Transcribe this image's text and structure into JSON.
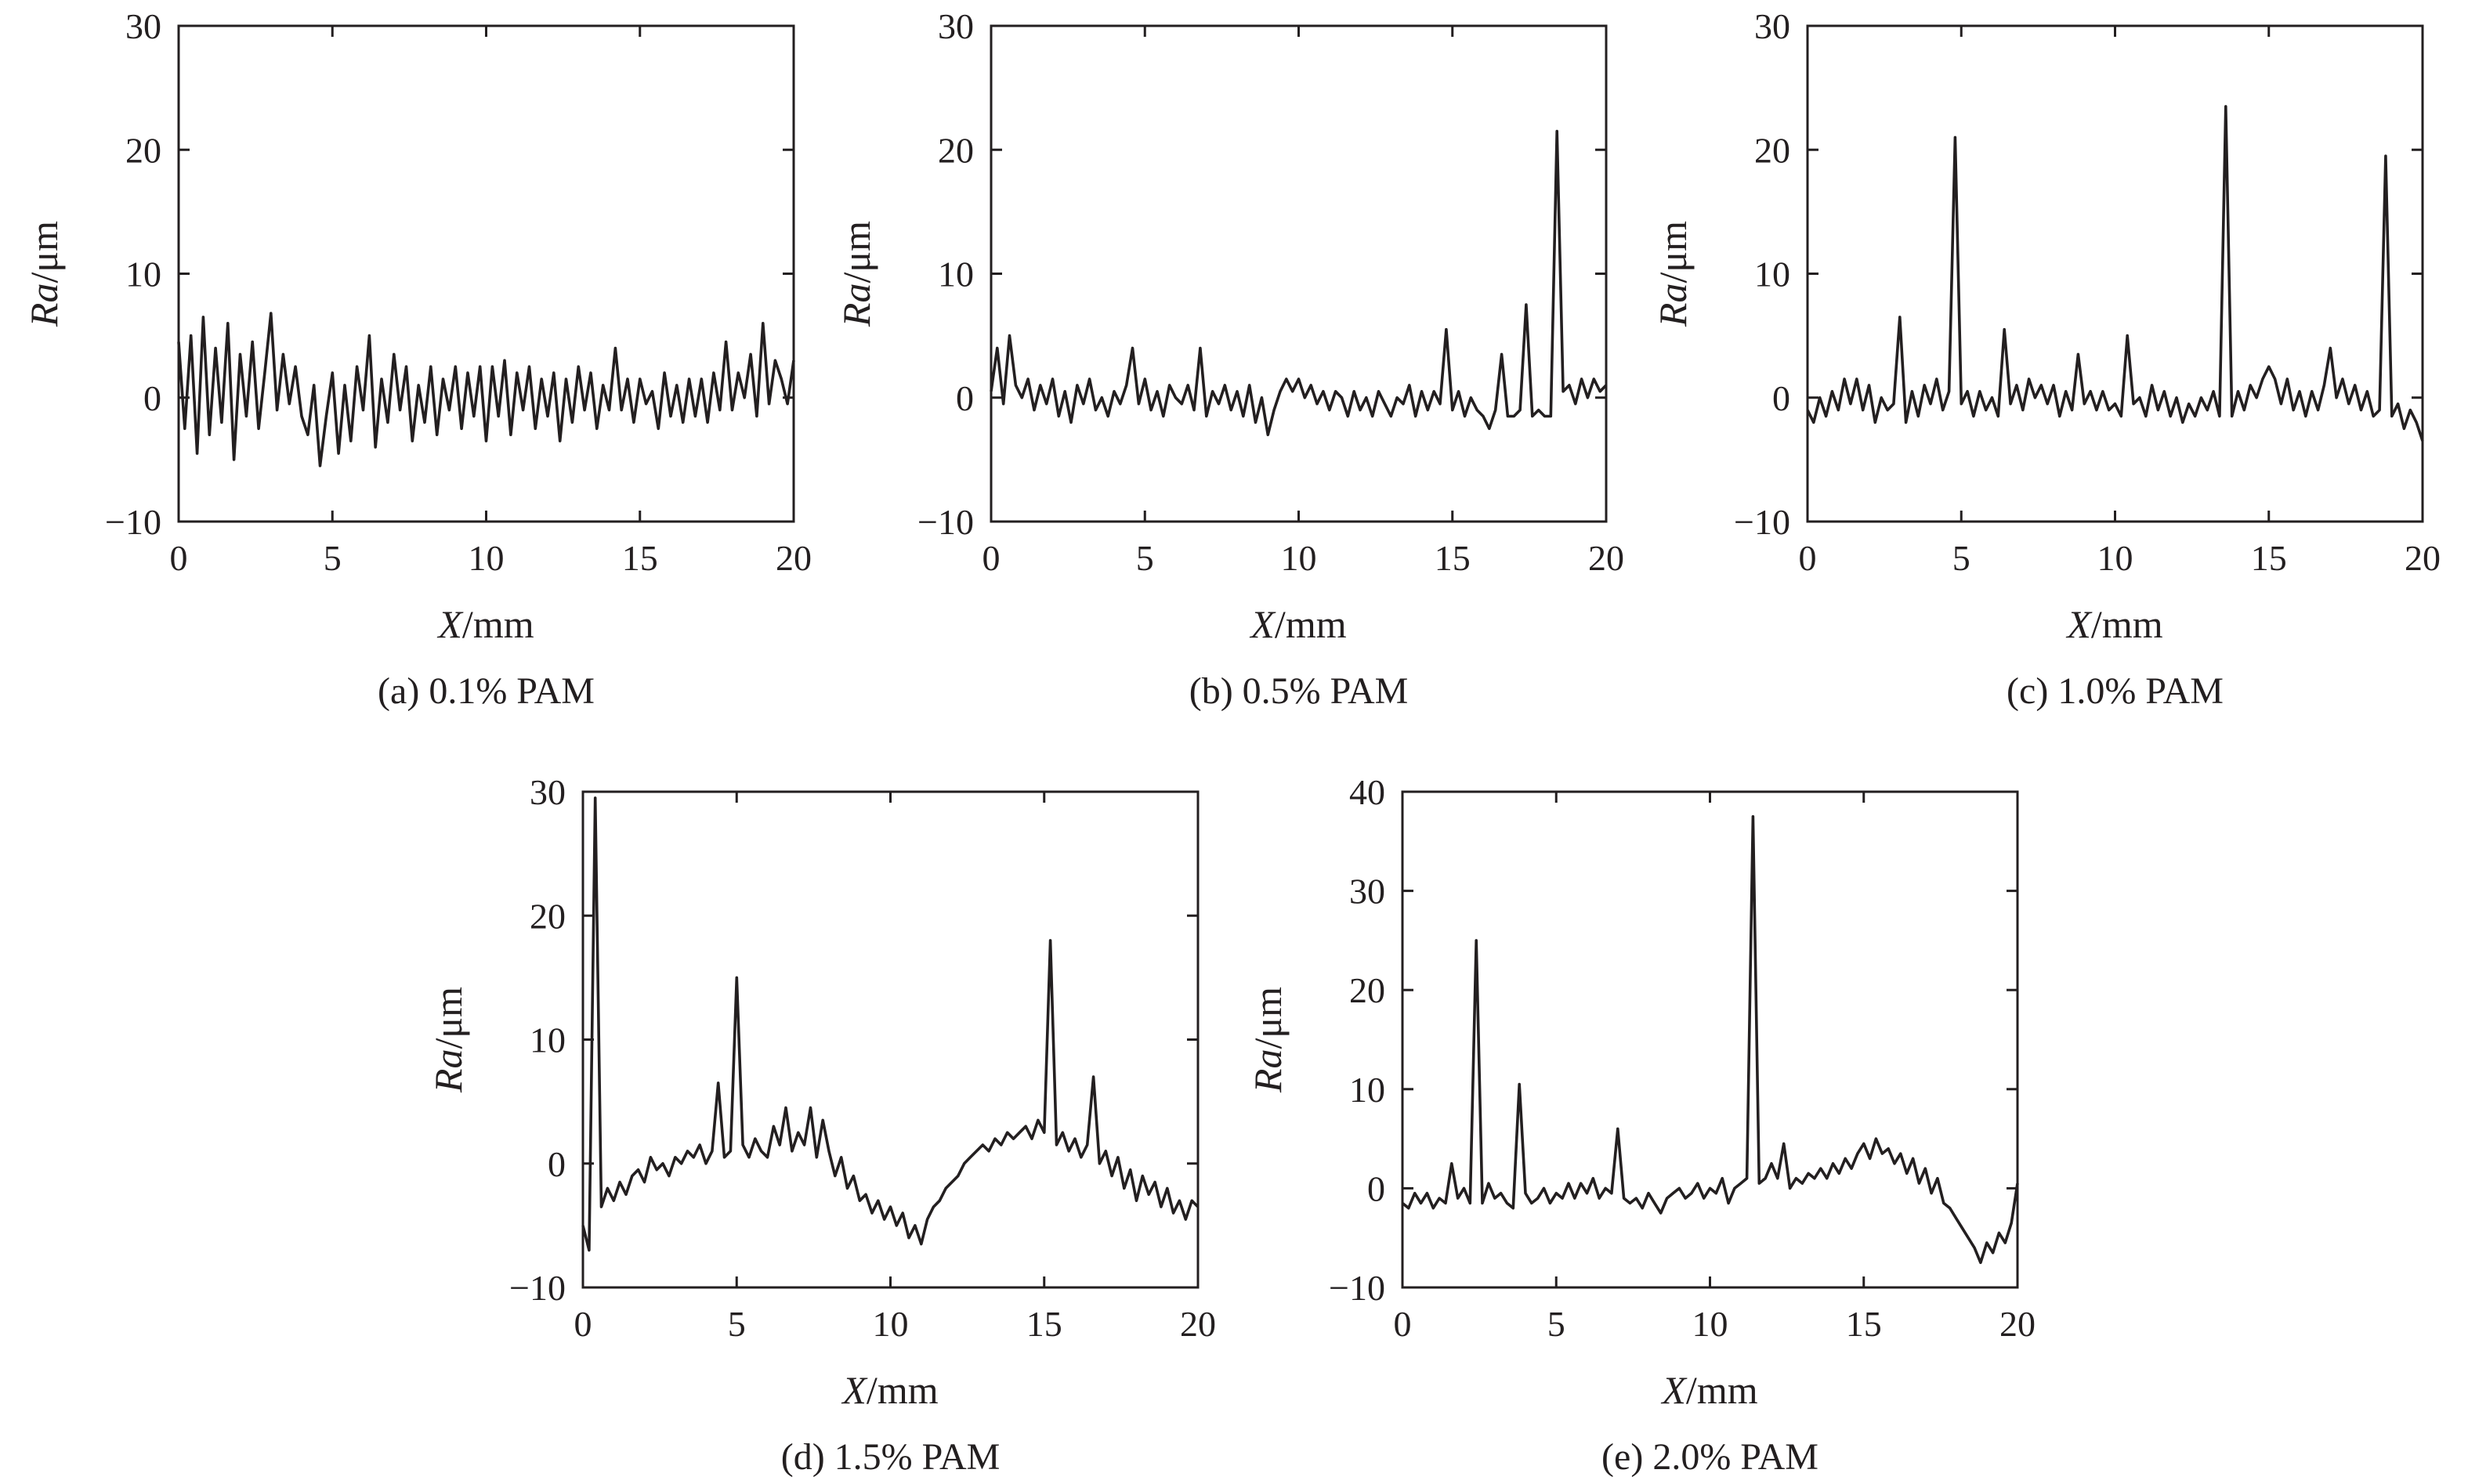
{
  "chart_data": [
    {
      "type": "line",
      "caption": "(a) 0.1% PAM",
      "xlabel_var": "X",
      "xlabel_unit": "/mm",
      "ylabel_var": "Ra",
      "ylabel_unit": "/μm",
      "xlim": [
        0,
        20
      ],
      "ylim": [
        -10,
        30
      ],
      "xticks": [
        0,
        5,
        10,
        15,
        20
      ],
      "yticks": [
        -10,
        0,
        10,
        20,
        30
      ],
      "x": [
        0.0,
        0.2,
        0.4,
        0.6,
        0.8,
        1.0,
        1.2,
        1.4,
        1.6,
        1.8,
        2.0,
        2.2,
        2.4,
        2.6,
        2.8,
        3.0,
        3.2,
        3.4,
        3.6,
        3.8,
        4.0,
        4.2,
        4.4,
        4.6,
        4.8,
        5.0,
        5.2,
        5.4,
        5.6,
        5.8,
        6.0,
        6.2,
        6.4,
        6.6,
        6.8,
        7.0,
        7.2,
        7.4,
        7.6,
        7.8,
        8.0,
        8.2,
        8.4,
        8.6,
        8.8,
        9.0,
        9.2,
        9.4,
        9.6,
        9.8,
        10.0,
        10.2,
        10.4,
        10.6,
        10.8,
        11.0,
        11.2,
        11.4,
        11.6,
        11.8,
        12.0,
        12.2,
        12.4,
        12.6,
        12.8,
        13.0,
        13.2,
        13.4,
        13.6,
        13.8,
        14.0,
        14.2,
        14.4,
        14.6,
        14.8,
        15.0,
        15.2,
        15.4,
        15.6,
        15.8,
        16.0,
        16.2,
        16.4,
        16.6,
        16.8,
        17.0,
        17.2,
        17.4,
        17.6,
        17.8,
        18.0,
        18.2,
        18.4,
        18.6,
        18.8,
        19.0,
        19.2,
        19.4,
        19.6,
        19.8,
        20.0
      ],
      "y": [
        4.5,
        -2.5,
        5.0,
        -4.5,
        6.5,
        -3.0,
        4.0,
        -2.0,
        6.0,
        -5.0,
        3.5,
        -1.5,
        4.5,
        -2.5,
        2.0,
        6.8,
        -1.0,
        3.5,
        -0.5,
        2.5,
        -1.5,
        -3.0,
        1.0,
        -5.5,
        -1.5,
        2.0,
        -4.5,
        1.0,
        -3.5,
        2.5,
        -1.0,
        5.0,
        -4.0,
        1.5,
        -2.0,
        3.5,
        -1.0,
        2.5,
        -3.5,
        1.0,
        -2.0,
        2.5,
        -3.0,
        1.5,
        -1.0,
        2.5,
        -2.5,
        2.0,
        -1.5,
        2.5,
        -3.5,
        2.5,
        -1.5,
        3.0,
        -3.0,
        2.0,
        -1.0,
        2.5,
        -2.5,
        1.5,
        -1.5,
        2.0,
        -3.5,
        1.5,
        -2.0,
        2.5,
        -1.0,
        2.0,
        -2.5,
        1.0,
        -1.0,
        4.0,
        -1.0,
        1.5,
        -2.0,
        1.5,
        -0.5,
        0.5,
        -2.5,
        2.0,
        -1.5,
        1.0,
        -2.0,
        1.5,
        -1.5,
        1.5,
        -2.0,
        2.0,
        -1.0,
        4.5,
        -1.0,
        2.0,
        0.0,
        3.5,
        -1.5,
        6.0,
        -0.5,
        3.0,
        1.5,
        -0.5,
        3.0
      ],
      "peaks": []
    },
    {
      "type": "line",
      "caption": "(b) 0.5% PAM",
      "xlabel_var": "X",
      "xlabel_unit": "/mm",
      "ylabel_var": "Ra",
      "ylabel_unit": "/μm",
      "xlim": [
        0,
        20
      ],
      "ylim": [
        -10,
        30
      ],
      "xticks": [
        0,
        5,
        10,
        15,
        20
      ],
      "yticks": [
        -10,
        0,
        10,
        20,
        30
      ],
      "x": [
        0.0,
        0.2,
        0.4,
        0.6,
        0.8,
        1.0,
        1.2,
        1.4,
        1.6,
        1.8,
        2.0,
        2.2,
        2.4,
        2.6,
        2.8,
        3.0,
        3.2,
        3.4,
        3.6,
        3.8,
        4.0,
        4.2,
        4.4,
        4.6,
        4.8,
        5.0,
        5.2,
        5.4,
        5.6,
        5.8,
        6.0,
        6.2,
        6.4,
        6.6,
        6.8,
        7.0,
        7.2,
        7.4,
        7.6,
        7.8,
        8.0,
        8.2,
        8.4,
        8.6,
        8.8,
        9.0,
        9.2,
        9.4,
        9.6,
        9.8,
        10.0,
        10.2,
        10.4,
        10.6,
        10.8,
        11.0,
        11.2,
        11.4,
        11.6,
        11.8,
        12.0,
        12.2,
        12.4,
        12.6,
        12.8,
        13.0,
        13.2,
        13.4,
        13.6,
        13.8,
        14.0,
        14.2,
        14.4,
        14.6,
        14.8,
        15.0,
        15.2,
        15.4,
        15.6,
        15.8,
        16.0,
        16.2,
        16.4,
        16.6,
        16.8,
        17.0,
        17.2,
        17.4,
        17.6,
        17.8,
        18.0,
        18.2,
        18.4,
        18.6,
        18.8,
        19.0,
        19.2,
        19.4,
        19.6,
        19.8,
        20.0
      ],
      "y": [
        0.5,
        4.0,
        -0.5,
        5.0,
        1.0,
        0.0,
        1.5,
        -1.0,
        1.0,
        -0.5,
        1.5,
        -1.5,
        0.5,
        -2.0,
        1.0,
        -0.5,
        1.5,
        -1.0,
        0.0,
        -1.5,
        0.5,
        -0.5,
        1.0,
        4.0,
        -0.5,
        1.5,
        -1.0,
        0.5,
        -1.5,
        1.0,
        0.0,
        -0.5,
        1.0,
        -1.0,
        4.0,
        -1.5,
        0.5,
        -0.5,
        1.0,
        -1.0,
        0.5,
        -1.5,
        1.0,
        -2.0,
        0.0,
        -3.0,
        -1.0,
        0.5,
        1.5,
        0.5,
        1.5,
        0.0,
        1.0,
        -0.5,
        0.5,
        -1.0,
        0.5,
        0.0,
        -1.5,
        0.5,
        -1.0,
        0.0,
        -1.5,
        0.5,
        -0.5,
        -1.5,
        0.0,
        -0.5,
        1.0,
        -1.5,
        0.5,
        -1.0,
        0.5,
        -0.5,
        5.5,
        -1.0,
        0.5,
        -1.5,
        0.0,
        -1.0,
        -1.5,
        -2.5,
        -1.0,
        3.5,
        -1.5,
        -1.5,
        -1.0,
        7.5,
        -1.5,
        -1.0,
        -1.5,
        -1.5,
        21.5,
        0.5,
        1.0,
        -0.5,
        1.5,
        0.0,
        1.5,
        0.5,
        1.0
      ],
      "peaks": [
        [
          15.0,
          5.5
        ],
        [
          17.6,
          7.5
        ],
        [
          18.4,
          21.5
        ]
      ]
    },
    {
      "type": "line",
      "caption": "(c) 1.0% PAM",
      "xlabel_var": "X",
      "xlabel_unit": "/mm",
      "ylabel_var": "Ra",
      "ylabel_unit": "/μm",
      "xlim": [
        0,
        20
      ],
      "ylim": [
        -10,
        30
      ],
      "xticks": [
        0,
        5,
        10,
        15,
        20
      ],
      "yticks": [
        -10,
        0,
        10,
        20,
        30
      ],
      "x": [
        0.0,
        0.2,
        0.4,
        0.6,
        0.8,
        1.0,
        1.2,
        1.4,
        1.6,
        1.8,
        2.0,
        2.2,
        2.4,
        2.6,
        2.8,
        3.0,
        3.2,
        3.4,
        3.6,
        3.8,
        4.0,
        4.2,
        4.4,
        4.6,
        4.8,
        5.0,
        5.2,
        5.4,
        5.6,
        5.8,
        6.0,
        6.2,
        6.4,
        6.6,
        6.8,
        7.0,
        7.2,
        7.4,
        7.6,
        7.8,
        8.0,
        8.2,
        8.4,
        8.6,
        8.8,
        9.0,
        9.2,
        9.4,
        9.6,
        9.8,
        10.0,
        10.2,
        10.4,
        10.6,
        10.8,
        11.0,
        11.2,
        11.4,
        11.6,
        11.8,
        12.0,
        12.2,
        12.4,
        12.6,
        12.8,
        13.0,
        13.2,
        13.4,
        13.6,
        13.8,
        14.0,
        14.2,
        14.4,
        14.6,
        14.8,
        15.0,
        15.2,
        15.4,
        15.6,
        15.8,
        16.0,
        16.2,
        16.4,
        16.6,
        16.8,
        17.0,
        17.2,
        17.4,
        17.6,
        17.8,
        18.0,
        18.2,
        18.4,
        18.6,
        18.8,
        19.0,
        19.2,
        19.4,
        19.6,
        19.8,
        20.0
      ],
      "y": [
        -1.0,
        -2.0,
        0.0,
        -1.5,
        0.5,
        -1.0,
        1.5,
        -0.5,
        1.5,
        -1.0,
        1.0,
        -2.0,
        0.0,
        -1.0,
        -0.5,
        6.5,
        -2.0,
        0.5,
        -1.5,
        1.0,
        -0.5,
        1.5,
        -1.0,
        0.5,
        21.0,
        -0.5,
        0.5,
        -1.5,
        0.5,
        -1.0,
        0.0,
        -1.5,
        5.5,
        -0.5,
        1.0,
        -1.0,
        1.5,
        0.0,
        1.0,
        -0.5,
        1.0,
        -1.5,
        0.5,
        -1.0,
        3.5,
        -0.5,
        0.5,
        -1.0,
        0.5,
        -1.0,
        -0.5,
        -1.5,
        5.0,
        -0.5,
        0.0,
        -1.5,
        1.0,
        -1.0,
        0.5,
        -1.5,
        0.0,
        -2.0,
        -0.5,
        -1.5,
        0.0,
        -1.0,
        0.5,
        -1.5,
        23.5,
        -1.5,
        0.5,
        -1.0,
        1.0,
        0.0,
        1.5,
        2.5,
        1.5,
        -0.5,
        1.5,
        -1.0,
        0.5,
        -1.5,
        0.5,
        -1.0,
        1.0,
        4.0,
        0.0,
        1.5,
        -0.5,
        1.0,
        -1.0,
        0.5,
        -1.5,
        -1.0,
        19.5,
        -1.5,
        -0.5,
        -2.5,
        -1.0,
        -2.0,
        -3.5
      ],
      "peaks": [
        [
          3.0,
          6.5
        ],
        [
          5.4,
          21.0
        ],
        [
          6.6,
          5.5
        ],
        [
          9.0,
          3.5
        ],
        [
          10.6,
          5.0
        ],
        [
          13.6,
          23.5
        ],
        [
          17.2,
          4.0
        ],
        [
          19.0,
          19.5
        ]
      ]
    },
    {
      "type": "line",
      "caption": "(d) 1.5% PAM",
      "xlabel_var": "X",
      "xlabel_unit": "/mm",
      "ylabel_var": "Ra",
      "ylabel_unit": "/μm",
      "xlim": [
        0,
        20
      ],
      "ylim": [
        -10,
        30
      ],
      "xticks": [
        0,
        5,
        10,
        15,
        20
      ],
      "yticks": [
        -10,
        0,
        10,
        20,
        30
      ],
      "x": [
        0.0,
        0.2,
        0.4,
        0.6,
        0.8,
        1.0,
        1.2,
        1.4,
        1.6,
        1.8,
        2.0,
        2.2,
        2.4,
        2.6,
        2.8,
        3.0,
        3.2,
        3.4,
        3.6,
        3.8,
        4.0,
        4.2,
        4.4,
        4.6,
        4.8,
        5.0,
        5.2,
        5.4,
        5.6,
        5.8,
        6.0,
        6.2,
        6.4,
        6.6,
        6.8,
        7.0,
        7.2,
        7.4,
        7.6,
        7.8,
        8.0,
        8.2,
        8.4,
        8.6,
        8.8,
        9.0,
        9.2,
        9.4,
        9.6,
        9.8,
        10.0,
        10.2,
        10.4,
        10.6,
        10.8,
        11.0,
        11.2,
        11.4,
        11.6,
        11.8,
        12.0,
        12.2,
        12.4,
        12.6,
        12.8,
        13.0,
        13.2,
        13.4,
        13.6,
        13.8,
        14.0,
        14.2,
        14.4,
        14.6,
        14.8,
        15.0,
        15.2,
        15.4,
        15.6,
        15.8,
        16.0,
        16.2,
        16.4,
        16.6,
        16.8,
        17.0,
        17.2,
        17.4,
        17.6,
        17.8,
        18.0,
        18.2,
        18.4,
        18.6,
        18.8,
        19.0,
        19.2,
        19.4,
        19.6,
        19.8,
        20.0
      ],
      "y": [
        -5.0,
        -7.0,
        29.5,
        -3.5,
        -2.0,
        -3.0,
        -1.5,
        -2.5,
        -1.0,
        -0.5,
        -1.5,
        0.5,
        -0.5,
        0.0,
        -1.0,
        0.5,
        0.0,
        1.0,
        0.5,
        1.5,
        0.0,
        1.0,
        6.5,
        0.5,
        1.0,
        15.0,
        1.5,
        0.5,
        2.0,
        1.0,
        0.5,
        3.0,
        1.5,
        4.5,
        1.0,
        2.5,
        1.5,
        4.5,
        0.5,
        3.5,
        1.0,
        -1.0,
        0.5,
        -2.0,
        -1.0,
        -3.0,
        -2.5,
        -4.0,
        -3.0,
        -4.5,
        -3.5,
        -5.0,
        -4.0,
        -6.0,
        -5.0,
        -6.5,
        -4.5,
        -3.5,
        -3.0,
        -2.0,
        -1.5,
        -1.0,
        0.0,
        0.5,
        1.0,
        1.5,
        1.0,
        2.0,
        1.5,
        2.5,
        2.0,
        2.5,
        3.0,
        2.0,
        3.5,
        2.5,
        18.0,
        1.5,
        2.5,
        1.0,
        2.0,
        0.5,
        1.5,
        7.0,
        0.0,
        1.0,
        -1.0,
        0.5,
        -2.0,
        -0.5,
        -3.0,
        -1.0,
        -2.5,
        -1.5,
        -3.5,
        -2.0,
        -4.0,
        -3.0,
        -4.5,
        -3.0,
        -3.5
      ],
      "peaks": [
        [
          0.4,
          29.5
        ],
        [
          4.4,
          6.5
        ],
        [
          5.4,
          15.0
        ],
        [
          15.4,
          18.0
        ],
        [
          17.0,
          7.0
        ]
      ]
    },
    {
      "type": "line",
      "caption": "(e) 2.0% PAM",
      "xlabel_var": "X",
      "xlabel_unit": "/mm",
      "ylabel_var": "Ra",
      "ylabel_unit": "/μm",
      "xlim": [
        0,
        20
      ],
      "ylim": [
        -10,
        40
      ],
      "xticks": [
        0,
        5,
        10,
        15,
        20
      ],
      "yticks": [
        -10,
        0,
        10,
        20,
        30,
        40
      ],
      "x": [
        0.0,
        0.2,
        0.4,
        0.6,
        0.8,
        1.0,
        1.2,
        1.4,
        1.6,
        1.8,
        2.0,
        2.2,
        2.4,
        2.6,
        2.8,
        3.0,
        3.2,
        3.4,
        3.6,
        3.8,
        4.0,
        4.2,
        4.4,
        4.6,
        4.8,
        5.0,
        5.2,
        5.4,
        5.6,
        5.8,
        6.0,
        6.2,
        6.4,
        6.6,
        6.8,
        7.0,
        7.2,
        7.4,
        7.6,
        7.8,
        8.0,
        8.2,
        8.4,
        8.6,
        8.8,
        9.0,
        9.2,
        9.4,
        9.6,
        9.8,
        10.0,
        10.2,
        10.4,
        10.6,
        10.8,
        11.0,
        11.2,
        11.4,
        11.6,
        11.8,
        12.0,
        12.2,
        12.4,
        12.6,
        12.8,
        13.0,
        13.2,
        13.4,
        13.6,
        13.8,
        14.0,
        14.2,
        14.4,
        14.6,
        14.8,
        15.0,
        15.2,
        15.4,
        15.6,
        15.8,
        16.0,
        16.2,
        16.4,
        16.6,
        16.8,
        17.0,
        17.2,
        17.4,
        17.6,
        17.8,
        18.0,
        18.2,
        18.4,
        18.6,
        18.8,
        19.0,
        19.2,
        19.4,
        19.6,
        19.8,
        20.0
      ],
      "y": [
        -1.5,
        -2.0,
        -0.5,
        -1.5,
        -0.5,
        -2.0,
        -1.0,
        -1.5,
        2.5,
        -1.0,
        0.0,
        -1.5,
        25.0,
        -1.5,
        0.5,
        -1.0,
        -0.5,
        -1.5,
        -2.0,
        10.5,
        -0.5,
        -1.5,
        -1.0,
        0.0,
        -1.5,
        -0.5,
        -1.0,
        0.5,
        -1.0,
        0.5,
        -0.5,
        1.0,
        -1.0,
        0.0,
        -0.5,
        6.0,
        -1.0,
        -1.5,
        -1.0,
        -2.0,
        -0.5,
        -1.5,
        -2.5,
        -1.0,
        -0.5,
        0.0,
        -1.0,
        -0.5,
        0.5,
        -1.0,
        0.0,
        -0.5,
        1.0,
        -1.5,
        0.0,
        0.5,
        1.0,
        37.5,
        0.5,
        1.0,
        2.5,
        1.0,
        4.5,
        0.0,
        1.0,
        0.5,
        1.5,
        1.0,
        2.0,
        1.0,
        2.5,
        1.5,
        3.0,
        2.0,
        3.5,
        4.5,
        3.0,
        5.0,
        3.5,
        4.0,
        2.5,
        3.5,
        1.5,
        3.0,
        0.5,
        2.0,
        -0.5,
        1.0,
        -1.5,
        -2.0,
        -3.0,
        -4.0,
        -5.0,
        -6.0,
        -7.5,
        -5.5,
        -6.5,
        -4.5,
        -5.5,
        -3.5,
        0.5
      ],
      "peaks": [
        [
          2.4,
          25.0
        ],
        [
          3.8,
          10.5
        ],
        [
          7.0,
          6.0
        ],
        [
          11.4,
          37.5
        ],
        [
          12.4,
          4.5
        ]
      ]
    }
  ]
}
